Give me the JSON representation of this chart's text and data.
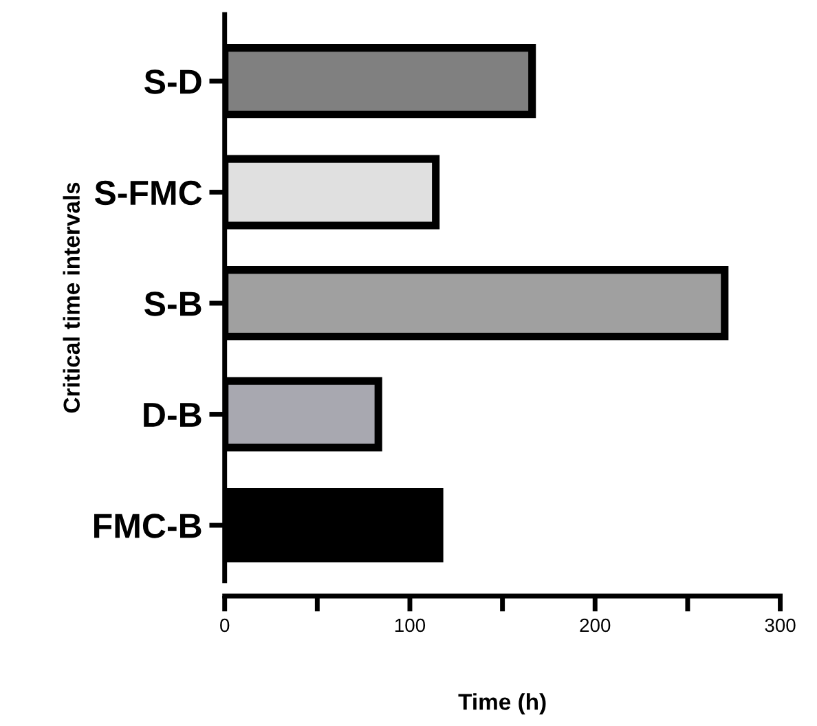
{
  "chart_data": {
    "type": "bar",
    "orientation": "horizontal",
    "xlabel": "Time (h)",
    "ylabel": "Critical time intervals",
    "categories": [
      "S-D",
      "S-FMC",
      "S-B",
      "D-B",
      "FMC-B"
    ],
    "values": [
      166,
      114,
      270,
      83,
      116
    ],
    "colors": [
      "#808080",
      "#e0e0e0",
      "#a0a0a0",
      "#a8a8b0",
      "#000000"
    ],
    "xlim": [
      0,
      300
    ],
    "xticks": [
      0,
      {
        "value": 50,
        "label": null
      },
      100,
      {
        "value": 150,
        "label": null
      },
      200,
      {
        "value": 250,
        "label": null
      },
      300
    ],
    "grid": false,
    "legend": false
  }
}
